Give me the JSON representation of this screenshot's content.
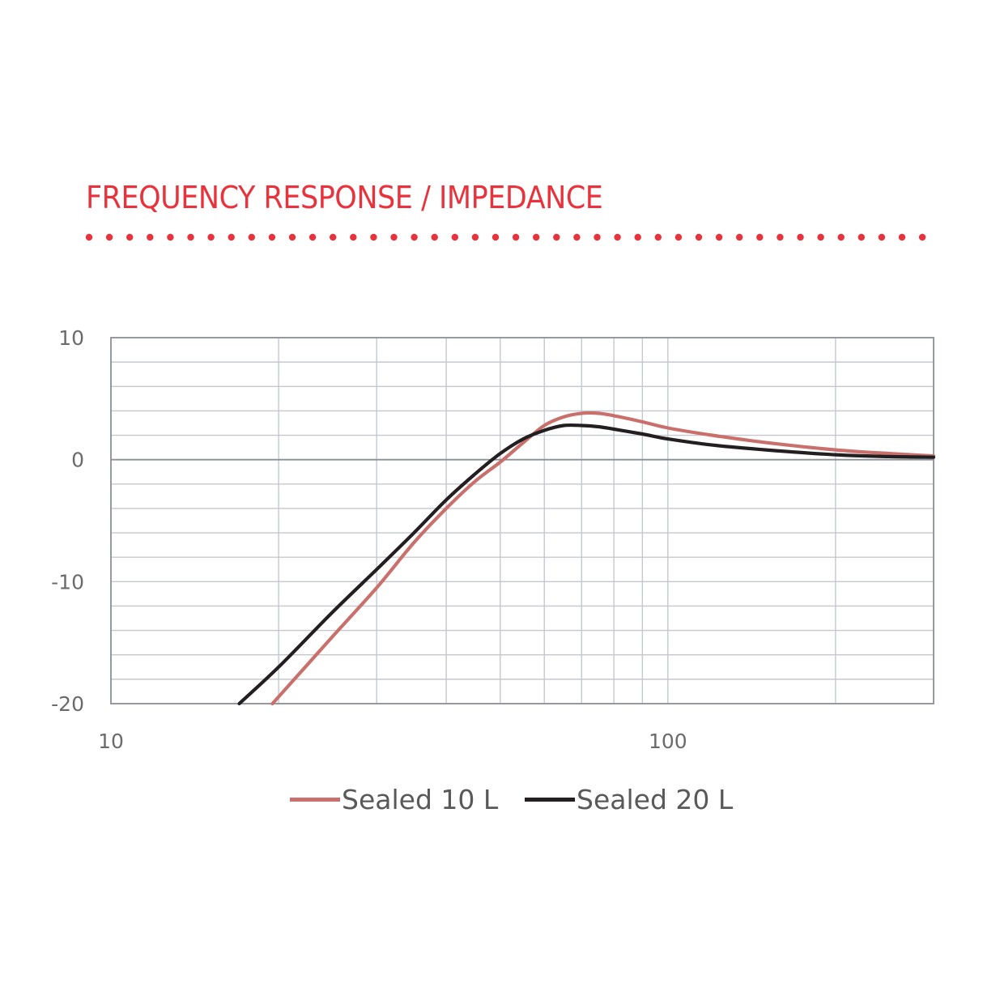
{
  "heading": "FREQUENCY RESPONSE / IMPEDANCE",
  "colors": {
    "accent": "#e8323c",
    "grid": "#c4c8ce",
    "axis": "#8a8f96"
  },
  "chart_data": {
    "type": "line",
    "title": "",
    "xlabel": "",
    "ylabel": "",
    "x_scale": "log",
    "xlim": [
      10,
      300
    ],
    "ylim": [
      -20,
      10
    ],
    "x_tick_labels": [
      {
        "value": 10,
        "label": "10"
      },
      {
        "value": 100,
        "label": "100"
      }
    ],
    "y_tick_labels": [
      {
        "value": 10,
        "label": "10"
      },
      {
        "value": 0,
        "label": "0"
      },
      {
        "value": -10,
        "label": "-10"
      },
      {
        "value": -20,
        "label": "-20"
      }
    ],
    "x_gridlines": [
      20,
      30,
      40,
      50,
      60,
      70,
      80,
      90,
      100,
      200
    ],
    "y_gridlines": [
      -18,
      -16,
      -14,
      -12,
      -10,
      -8,
      -6,
      -4,
      -2,
      0,
      2,
      4,
      6,
      8
    ],
    "grid": true,
    "legend_position": "bottom",
    "series": [
      {
        "name": "Sealed 10 L",
        "color": "#c9706d",
        "x": [
          19.5,
          25,
          30,
          35,
          40,
          45,
          50,
          55,
          60,
          65,
          70,
          75,
          80,
          90,
          100,
          120,
          150,
          200,
          250,
          300
        ],
        "y": [
          -20,
          -14.5,
          -10.5,
          -6.8,
          -4,
          -1.8,
          -0.2,
          1.4,
          2.8,
          3.5,
          3.8,
          3.8,
          3.6,
          3.1,
          2.6,
          2.0,
          1.4,
          0.8,
          0.5,
          0.3
        ]
      },
      {
        "name": "Sealed 20 L",
        "color": "#231f20",
        "x": [
          17,
          20,
          25,
          30,
          35,
          40,
          45,
          50,
          55,
          60,
          65,
          70,
          75,
          80,
          90,
          100,
          120,
          150,
          200,
          250,
          300
        ],
        "y": [
          -20,
          -17,
          -12.5,
          -9,
          -6,
          -3.3,
          -1.2,
          0.5,
          1.7,
          2.4,
          2.8,
          2.8,
          2.7,
          2.5,
          2.1,
          1.7,
          1.2,
          0.8,
          0.4,
          0.25,
          0.2
        ]
      }
    ]
  }
}
